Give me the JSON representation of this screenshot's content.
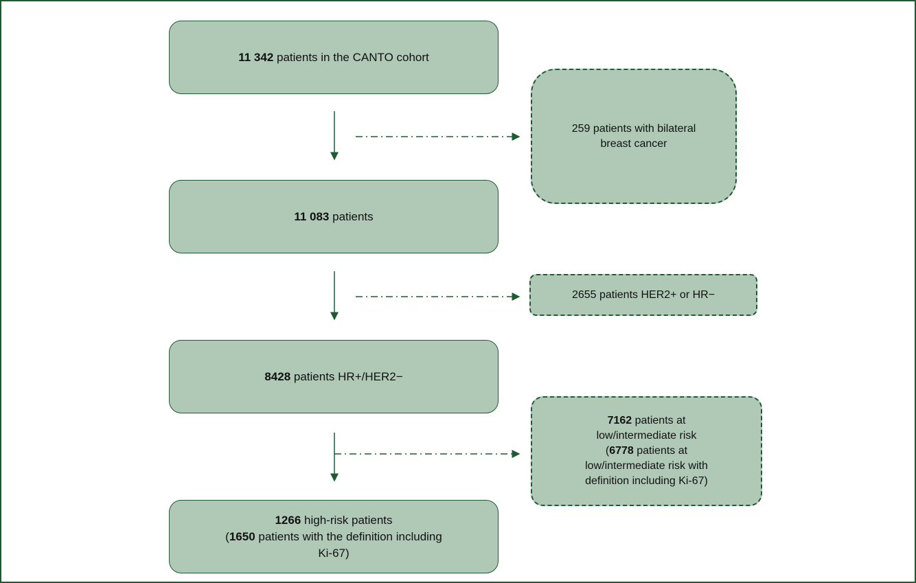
{
  "cohort_steps": [
    {
      "lines": [
        [
          "11 342",
          " patients in the CANTO cohort"
        ]
      ]
    },
    {
      "lines": [
        [
          "11 083",
          " patients"
        ]
      ]
    },
    {
      "lines": [
        [
          "8428",
          " patients HR+/HER2−"
        ]
      ]
    },
    {
      "lines": [
        [
          "1266",
          " high-risk patients"
        ],
        [
          "(",
          "1650",
          " patients with the definition including"
        ],
        [
          "Ki-67)"
        ]
      ]
    }
  ],
  "exclusions": [
    {
      "lines": [
        [
          "259 patients with bilateral"
        ],
        [
          "breast cancer"
        ]
      ]
    },
    {
      "lines": [
        [
          "2655 patients HER2+ or HR−"
        ]
      ]
    },
    {
      "lines": [
        [
          "7162",
          " patients at"
        ],
        [
          "low/intermediate risk"
        ],
        [
          "(",
          "6778",
          " patients at"
        ],
        [
          "low/intermediate risk with"
        ],
        [
          "definition including Ki-67)"
        ]
      ]
    }
  ]
}
